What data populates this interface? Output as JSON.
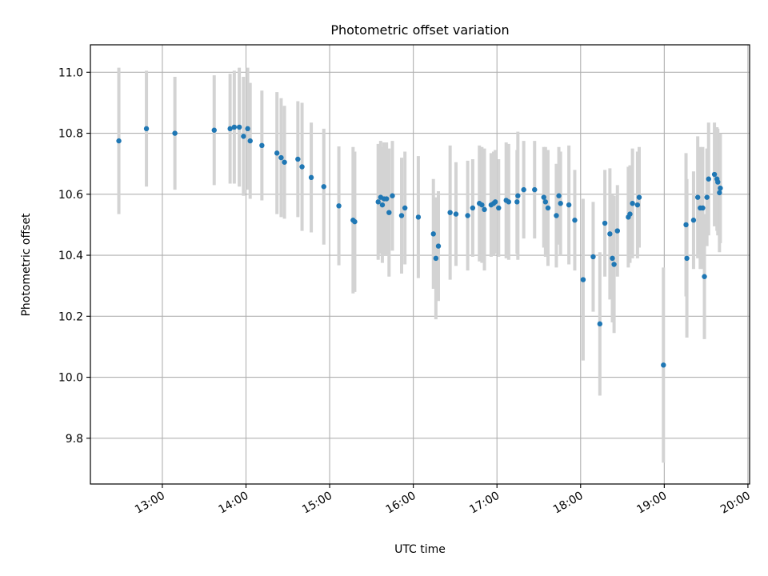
{
  "chart_data": {
    "type": "scatter",
    "title": "Photometric offset variation",
    "xlabel": "UTC time",
    "ylabel": "Photometric offset",
    "x_tick_labels": [
      "13:00",
      "14:00",
      "15:00",
      "16:00",
      "17:00",
      "18:00",
      "19:00",
      "20:00"
    ],
    "x_tick_hours": [
      13,
      14,
      15,
      16,
      17,
      18,
      19,
      20
    ],
    "y_tick_labels": [
      "9.8",
      "10.0",
      "10.2",
      "10.4",
      "10.6",
      "10.8",
      "11.0"
    ],
    "y_tick_values": [
      9.8,
      10.0,
      10.2,
      10.4,
      10.6,
      10.8,
      11.0
    ],
    "xlim_hours": [
      12.14,
      20.02
    ],
    "ylim": [
      9.65,
      11.09
    ],
    "grid": true,
    "marker_color": "#1f77b4",
    "errorbar_color": "#d3d3d3",
    "series": [
      {
        "x_hours": [
          12.48,
          12.81,
          13.15,
          13.62,
          13.81,
          13.86,
          13.92,
          13.97,
          14.02,
          14.05,
          14.19,
          14.37,
          14.42,
          14.46,
          14.62,
          14.67,
          14.78,
          14.93,
          15.11,
          15.28,
          15.3,
          15.58,
          15.61,
          15.63,
          15.65,
          15.68,
          15.71,
          15.75,
          15.86,
          15.9,
          16.06,
          16.24,
          16.27,
          16.3,
          16.44,
          16.51,
          16.65,
          16.71,
          16.79,
          16.82,
          16.85,
          16.93,
          16.96,
          16.98,
          17.02,
          17.11,
          17.14,
          17.24,
          17.25,
          17.32,
          17.45,
          17.56,
          17.58,
          17.61,
          17.71,
          17.74,
          17.76,
          17.86,
          17.93,
          18.03,
          18.15,
          18.23,
          18.29,
          18.35,
          18.38,
          18.4,
          18.44,
          18.57,
          18.59,
          18.62,
          18.68,
          18.7,
          18.99,
          19.26,
          19.27,
          19.35,
          19.4,
          19.43,
          19.46,
          19.48,
          19.51,
          19.53,
          19.6,
          19.63,
          19.64,
          19.66,
          19.67
        ],
        "y": [
          10.775,
          10.815,
          10.8,
          10.81,
          10.815,
          10.82,
          10.82,
          10.79,
          10.815,
          10.775,
          10.76,
          10.735,
          10.72,
          10.705,
          10.715,
          10.69,
          10.655,
          10.625,
          10.562,
          10.515,
          10.51,
          10.575,
          10.59,
          10.565,
          10.585,
          10.585,
          10.54,
          10.595,
          10.53,
          10.555,
          10.525,
          10.47,
          10.39,
          10.43,
          10.54,
          10.535,
          10.53,
          10.555,
          10.57,
          10.565,
          10.55,
          10.565,
          10.57,
          10.575,
          10.555,
          10.58,
          10.575,
          10.575,
          10.595,
          10.615,
          10.615,
          10.59,
          10.575,
          10.555,
          10.53,
          10.595,
          10.57,
          10.565,
          10.515,
          10.32,
          10.395,
          10.175,
          10.505,
          10.47,
          10.39,
          10.37,
          10.48,
          10.525,
          10.535,
          10.57,
          10.565,
          10.59,
          10.04,
          10.5,
          10.39,
          10.515,
          10.59,
          10.555,
          10.555,
          10.33,
          10.59,
          10.65,
          10.665,
          10.65,
          10.64,
          10.605,
          10.62
        ],
        "err": [
          0.24,
          0.19,
          0.185,
          0.18,
          0.18,
          0.185,
          0.195,
          0.195,
          0.2,
          0.19,
          0.18,
          0.2,
          0.195,
          0.185,
          0.19,
          0.21,
          0.18,
          0.19,
          0.195,
          0.24,
          0.23,
          0.19,
          0.185,
          0.19,
          0.185,
          0.185,
          0.21,
          0.18,
          0.19,
          0.185,
          0.2,
          0.18,
          0.2,
          0.18,
          0.22,
          0.17,
          0.18,
          0.16,
          0.19,
          0.19,
          0.2,
          0.17,
          0.17,
          0.17,
          0.16,
          0.19,
          0.19,
          0.17,
          0.21,
          0.16,
          0.16,
          0.165,
          0.18,
          0.19,
          0.17,
          0.16,
          0.17,
          0.195,
          0.165,
          0.265,
          0.18,
          0.235,
          0.175,
          0.215,
          0.21,
          0.225,
          0.15,
          0.165,
          0.16,
          0.18,
          0.175,
          0.165,
          0.32,
          0.235,
          0.26,
          0.16,
          0.2,
          0.2,
          0.2,
          0.205,
          0.16,
          0.185,
          0.17,
          0.17,
          0.175,
          0.195,
          0.18
        ]
      }
    ]
  }
}
